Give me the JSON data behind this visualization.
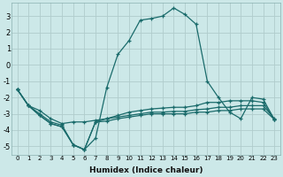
{
  "xlabel": "Humidex (Indice chaleur)",
  "bg_color": "#cce8e8",
  "grid_color": "#b0cccc",
  "line_color": "#1a6b6b",
  "line1_y": [
    -1.5,
    -2.5,
    -2.8,
    -3.3,
    -3.6,
    -3.5,
    -3.5,
    -3.4,
    -3.3,
    -3.2,
    -3.1,
    -3.0,
    -2.9,
    -2.9,
    -2.85,
    -2.85,
    -2.75,
    -2.7,
    -2.6,
    -2.6,
    -2.5,
    -2.5,
    -2.5,
    -3.3
  ],
  "line2_y": [
    -1.5,
    -2.5,
    -3.0,
    -3.5,
    -3.7,
    -4.9,
    -5.2,
    -4.5,
    -1.4,
    0.65,
    1.5,
    2.75,
    2.85,
    3.0,
    3.5,
    3.1,
    2.5,
    -1.0,
    -2.0,
    -2.9,
    -3.3,
    -2.0,
    -2.1,
    -3.35
  ],
  "line3_y": [
    -1.5,
    -2.5,
    -3.1,
    -3.6,
    -3.8,
    -4.9,
    -5.2,
    -3.5,
    -3.3,
    -3.1,
    -2.9,
    -2.8,
    -2.7,
    -2.65,
    -2.6,
    -2.6,
    -2.5,
    -2.3,
    -2.3,
    -2.2,
    -2.2,
    -2.2,
    -2.3,
    -3.35
  ],
  "line4_y": [
    -1.5,
    -2.5,
    -3.1,
    -3.6,
    -3.8,
    -4.9,
    -5.2,
    -3.5,
    -3.45,
    -3.3,
    -3.2,
    -3.1,
    -3.0,
    -3.0,
    -3.0,
    -3.0,
    -2.9,
    -2.9,
    -2.8,
    -2.8,
    -2.7,
    -2.7,
    -2.7,
    -3.35
  ],
  "x": [
    0,
    1,
    2,
    3,
    4,
    5,
    6,
    7,
    8,
    9,
    10,
    11,
    12,
    13,
    14,
    15,
    16,
    17,
    18,
    19,
    20,
    21,
    22,
    23
  ],
  "xlim": [
    -0.5,
    23.5
  ],
  "ylim": [
    -5.5,
    3.8
  ],
  "xticks": [
    0,
    1,
    2,
    3,
    4,
    5,
    6,
    7,
    8,
    9,
    10,
    11,
    12,
    13,
    14,
    15,
    16,
    17,
    18,
    19,
    20,
    21,
    22,
    23
  ],
  "yticks": [
    -5,
    -4,
    -3,
    -2,
    -1,
    0,
    1,
    2,
    3
  ]
}
